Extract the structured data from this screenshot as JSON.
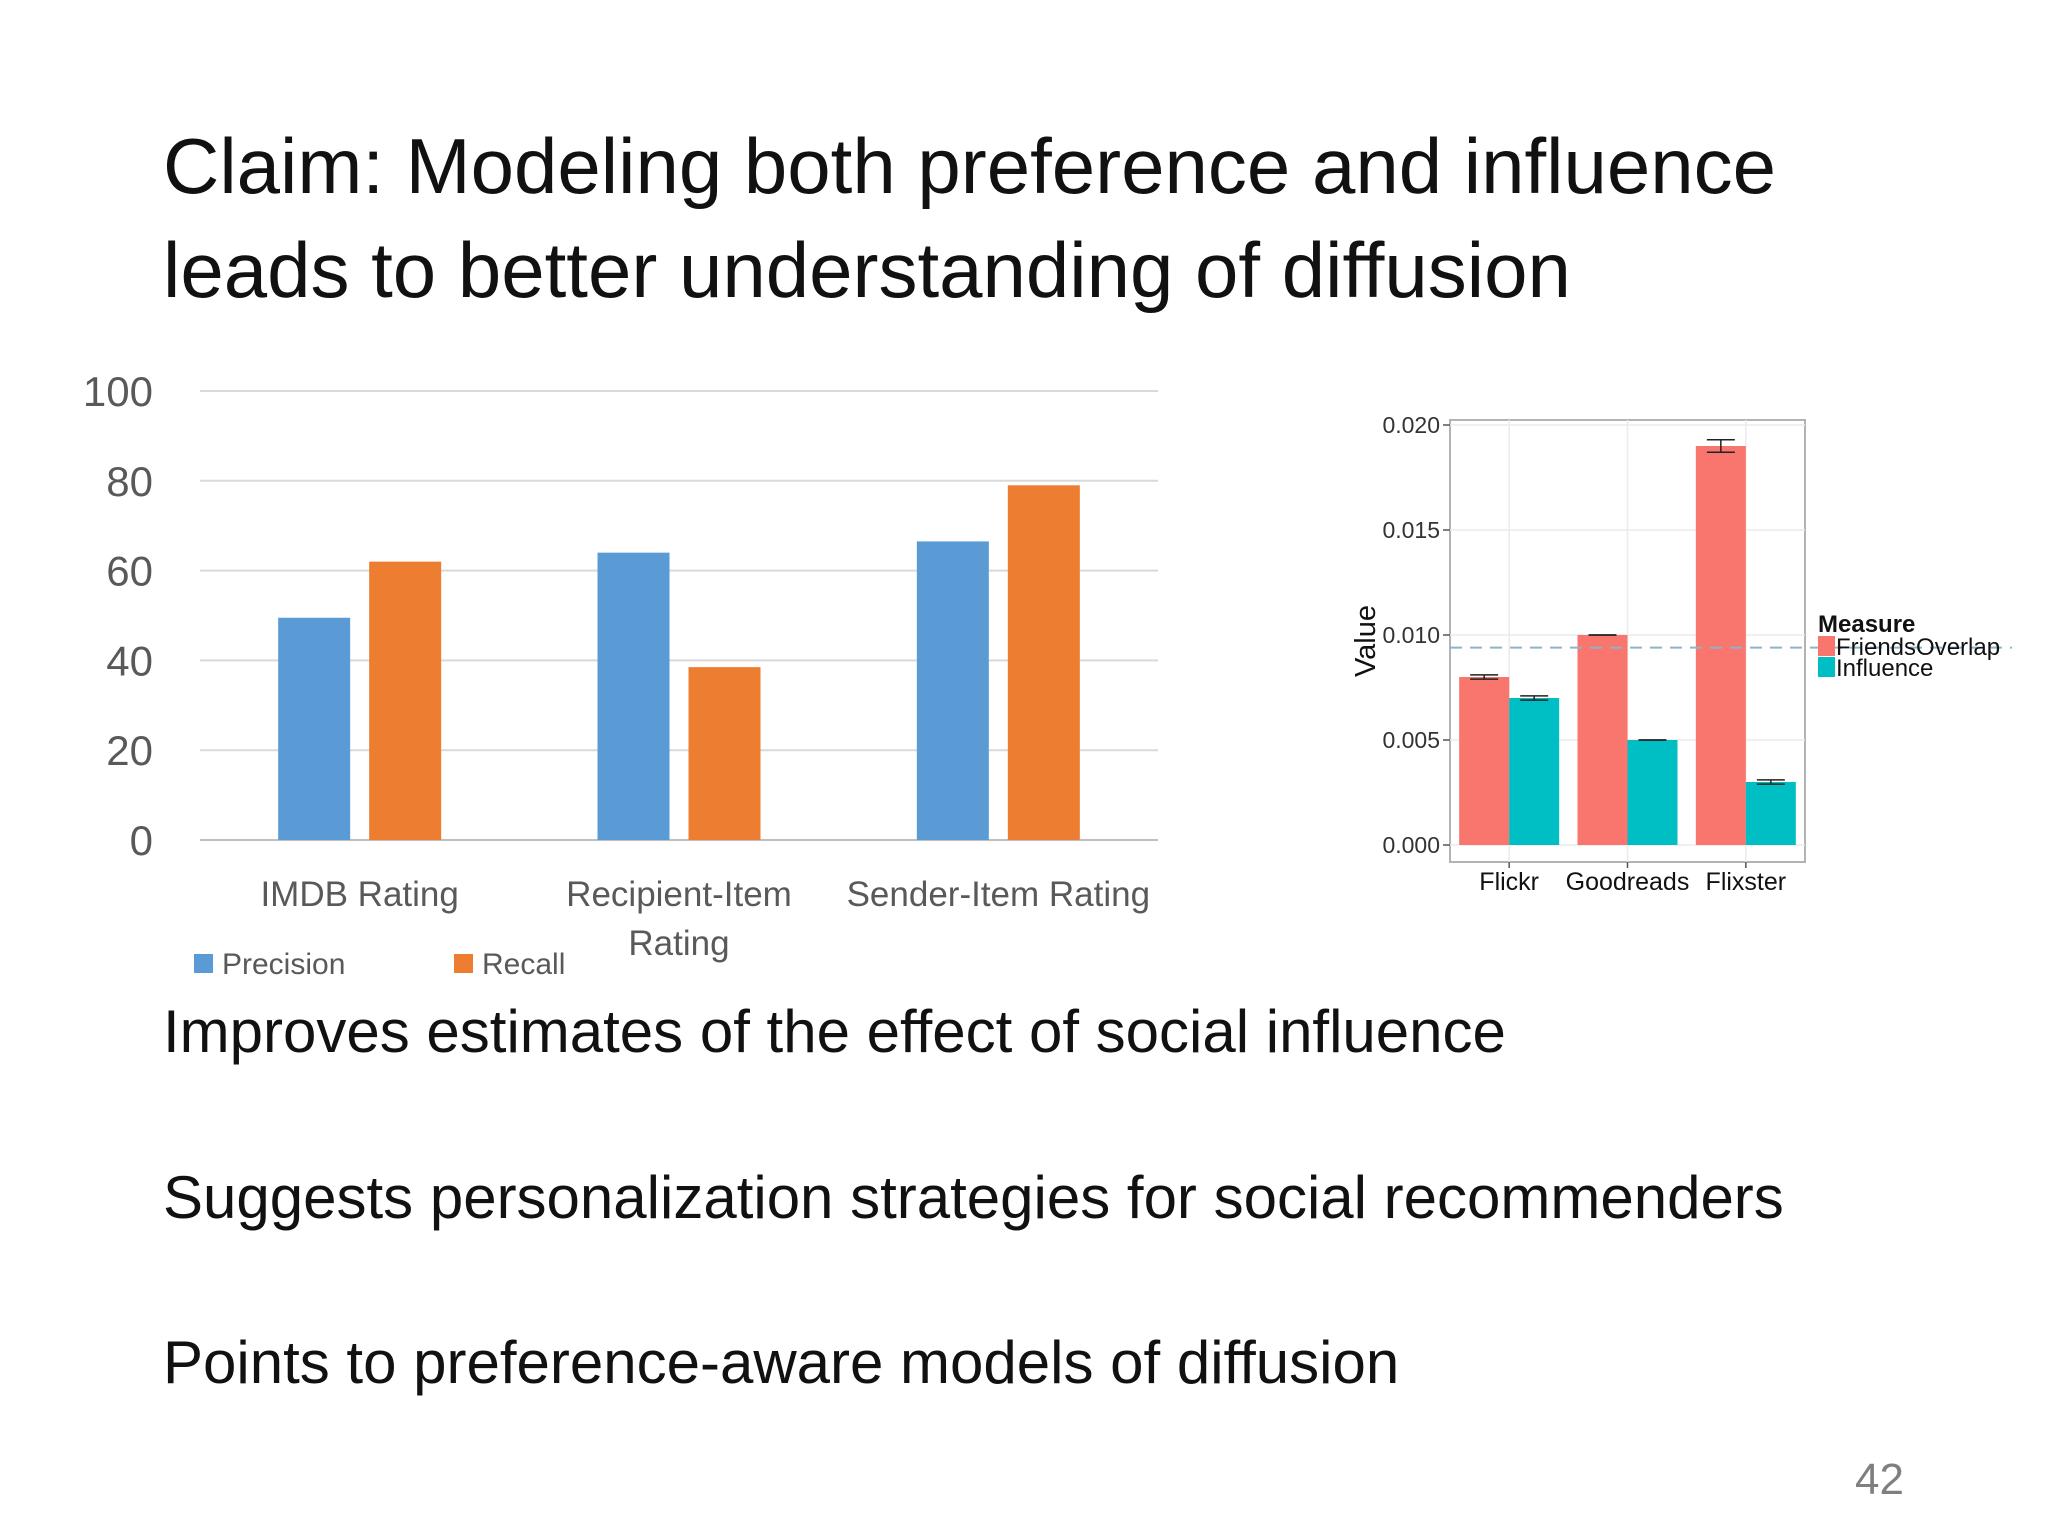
{
  "slide": {
    "title": "Claim: Modeling both preference and influence leads to better understanding of diffusion",
    "bullets": [
      "Improves estimates of the effect of social influence",
      "Suggests personalization strategies for social recommenders",
      "Points to preference-aware models of diffusion"
    ],
    "page_number": "42"
  },
  "chart_data": [
    {
      "type": "bar",
      "title": "",
      "xlabel": "",
      "ylabel": "",
      "categories": [
        "IMDB Rating",
        "Recipient-Item Rating",
        "Sender-Item Rating"
      ],
      "category_lines": [
        [
          "IMDB Rating"
        ],
        [
          "Recipient-Item",
          "Rating"
        ],
        [
          "Sender-Item Rating"
        ]
      ],
      "series": [
        {
          "name": "Precision",
          "color": "#5b9bd5",
          "values": [
            49.5,
            64,
            66.5
          ]
        },
        {
          "name": "Recall",
          "color": "#ed7d31",
          "values": [
            62,
            38.5,
            79
          ]
        }
      ],
      "ylim": [
        0,
        100
      ],
      "yticks": [
        "0",
        "20",
        "40",
        "60",
        "80",
        "100"
      ],
      "grid": true,
      "legend": "bottom-left"
    },
    {
      "type": "bar",
      "title": "",
      "xlabel": "",
      "ylabel": "Value",
      "categories": [
        "Flickr",
        "Goodreads",
        "Flixster"
      ],
      "series": [
        {
          "name": "FriendsOverlap",
          "color": "#f8766d",
          "values": [
            0.008,
            0.01,
            0.019
          ],
          "err": [
            0.0001,
            0.0,
            0.0003
          ]
        },
        {
          "name": "Influence",
          "color": "#00bfc4",
          "values": [
            0.007,
            0.005,
            0.003
          ],
          "err": [
            0.0001,
            0.0,
            0.0001
          ]
        }
      ],
      "ylim": [
        0,
        0.0205
      ],
      "yticks": [
        "0.000",
        "0.005",
        "0.010",
        "0.015",
        "0.020"
      ],
      "reference_line": 0.0094,
      "grid": true,
      "legend_title": "Measure",
      "legend": "right"
    }
  ]
}
